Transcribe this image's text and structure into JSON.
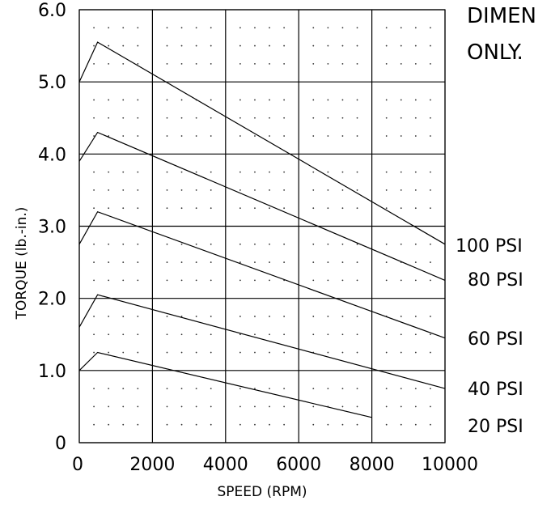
{
  "chart_data": {
    "type": "line",
    "title": "",
    "xlabel": "SPEED (RPM)",
    "ylabel": "TORQUE (lb.-in.)",
    "xlim": [
      0,
      10000
    ],
    "ylim": [
      0,
      6
    ],
    "x_ticks": [
      0,
      2000,
      4000,
      6000,
      8000,
      10000
    ],
    "x_tick_labels": [
      "0",
      "2000",
      "4000",
      "6000",
      "8000",
      "10000"
    ],
    "y_ticks": [
      0,
      1,
      2,
      3,
      4,
      5,
      6
    ],
    "y_tick_labels": [
      "0",
      "1.0",
      "2.0",
      "3.0",
      "4.0",
      "5.0",
      "6.0"
    ],
    "grid": true,
    "note": [
      "DIMEN",
      "ONLY."
    ],
    "series": [
      {
        "name": "100 PSI",
        "x": [
          0,
          500,
          10000
        ],
        "y": [
          5.0,
          5.55,
          2.75
        ]
      },
      {
        "name": "80 PSI",
        "x": [
          0,
          500,
          10000
        ],
        "y": [
          3.9,
          4.3,
          2.25
        ]
      },
      {
        "name": "60 PSI",
        "x": [
          0,
          500,
          10000
        ],
        "y": [
          2.75,
          3.2,
          1.45
        ]
      },
      {
        "name": "40 PSI",
        "x": [
          0,
          500,
          10000
        ],
        "y": [
          1.6,
          2.05,
          0.75
        ]
      },
      {
        "name": "20 PSI",
        "x": [
          0,
          500,
          8000
        ],
        "y": [
          1.0,
          1.25,
          0.35
        ]
      }
    ]
  }
}
